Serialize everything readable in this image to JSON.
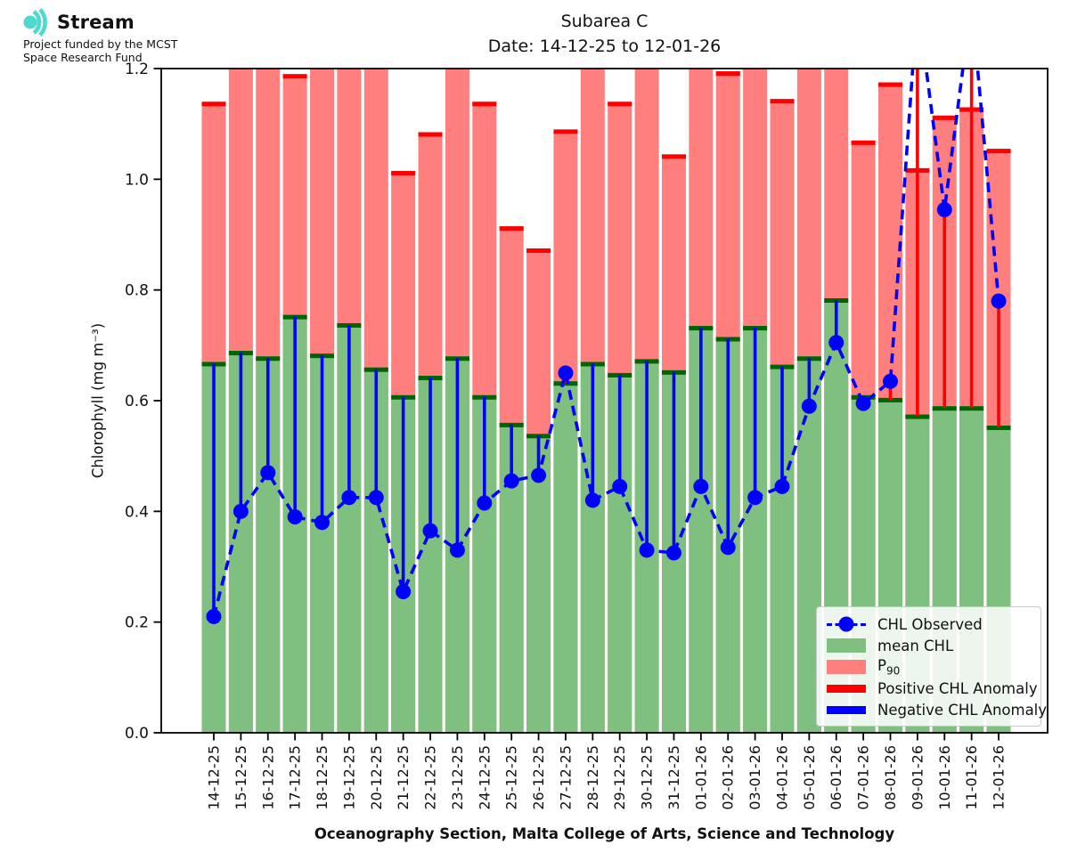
{
  "logo": {
    "brand": "Stream",
    "funding_line1": "Project funded by the MCST",
    "funding_line2": "Space Research Fund",
    "icon": "signal-waves-icon",
    "icon_color": "#4FD8CE"
  },
  "chart_data": {
    "type": "bar",
    "title": "Subarea C",
    "subtitle": "Date: 14-12-25 to 12-01-26",
    "xlabel": "Oceanography Section, Malta College of Arts, Science and Technology",
    "ylabel": "Chlorophyll (mg m⁻³)",
    "ylim": [
      0,
      1.2
    ],
    "yticks": [
      "0.0",
      "0.2",
      "0.4",
      "0.6",
      "0.8",
      "1.0",
      "1.2"
    ],
    "grid": false,
    "legend_position": "lower right",
    "categories": [
      "14-12-25",
      "15-12-25",
      "16-12-25",
      "17-12-25",
      "18-12-25",
      "19-12-25",
      "20-12-25",
      "21-12-25",
      "22-12-25",
      "23-12-25",
      "24-12-25",
      "25-12-25",
      "26-12-25",
      "27-12-25",
      "28-12-25",
      "29-12-25",
      "30-12-25",
      "31-12-25",
      "01-01-26",
      "02-01-26",
      "03-01-26",
      "04-01-26",
      "05-01-26",
      "06-01-26",
      "07-01-26",
      "08-01-26",
      "09-01-26",
      "10-01-26",
      "11-01-26",
      "12-01-26"
    ],
    "series": [
      {
        "name": "mean CHL",
        "type": "bar",
        "fill": "#7FBF7F",
        "edge": "#006400",
        "values": [
          0.67,
          0.69,
          0.68,
          0.755,
          0.685,
          0.74,
          0.66,
          0.61,
          0.645,
          0.68,
          0.61,
          0.56,
          0.54,
          0.635,
          0.67,
          0.65,
          0.675,
          0.655,
          0.735,
          0.715,
          0.735,
          0.665,
          0.68,
          0.785,
          0.61,
          0.605,
          0.575,
          0.59,
          0.59,
          0.555
        ]
      },
      {
        "name": "P90",
        "type": "bar",
        "fill": "#FF7F7F",
        "edge": "#FF0000",
        "note": "null = bar exceeds 1.2 axis maximum (clipped at top)",
        "values": [
          1.14,
          null,
          null,
          1.19,
          null,
          null,
          null,
          1.015,
          1.085,
          null,
          1.14,
          0.915,
          0.875,
          1.09,
          null,
          1.14,
          null,
          1.045,
          null,
          1.195,
          null,
          1.145,
          null,
          null,
          1.07,
          1.175,
          1.02,
          1.115,
          1.13,
          1.055
        ]
      },
      {
        "name": "CHL Observed",
        "type": "line",
        "color": "#0000FF",
        "style": "dashed",
        "marker": "circle",
        "note": "null = observed value exceeds 1.2 axis maximum (peak clipped at top)",
        "values": [
          0.21,
          0.4,
          0.47,
          0.39,
          0.38,
          0.425,
          0.425,
          0.255,
          0.365,
          0.33,
          0.415,
          0.455,
          0.465,
          0.65,
          0.42,
          0.445,
          0.33,
          0.325,
          0.445,
          0.335,
          0.425,
          0.445,
          0.59,
          0.705,
          0.595,
          0.635,
          null,
          0.945,
          null,
          0.78
        ]
      }
    ],
    "anomaly": {
      "positive_color": "#FF0000",
      "negative_color": "#0000FF",
      "rule": "vertical line from mean CHL to CHL Observed; red when observed > mean, blue when observed < mean"
    },
    "legend": {
      "items": [
        {
          "label": "CHL Observed",
          "swatch": "dashed-line-dot"
        },
        {
          "label": "mean CHL",
          "swatch": "green-patch"
        },
        {
          "label": "P",
          "label_sub": "90",
          "swatch": "salmon-patch"
        },
        {
          "label": "Positive CHL Anomaly",
          "swatch": "red-bar"
        },
        {
          "label": "Negative CHL Anomaly",
          "swatch": "blue-bar"
        }
      ]
    },
    "colors": {
      "mean_fill": "#7FBF7F",
      "mean_edge": "#006400",
      "p90_fill": "#FF7F7F",
      "p90_edge": "#FF0000",
      "observed": "#0000FF",
      "axis": "#000000"
    }
  }
}
